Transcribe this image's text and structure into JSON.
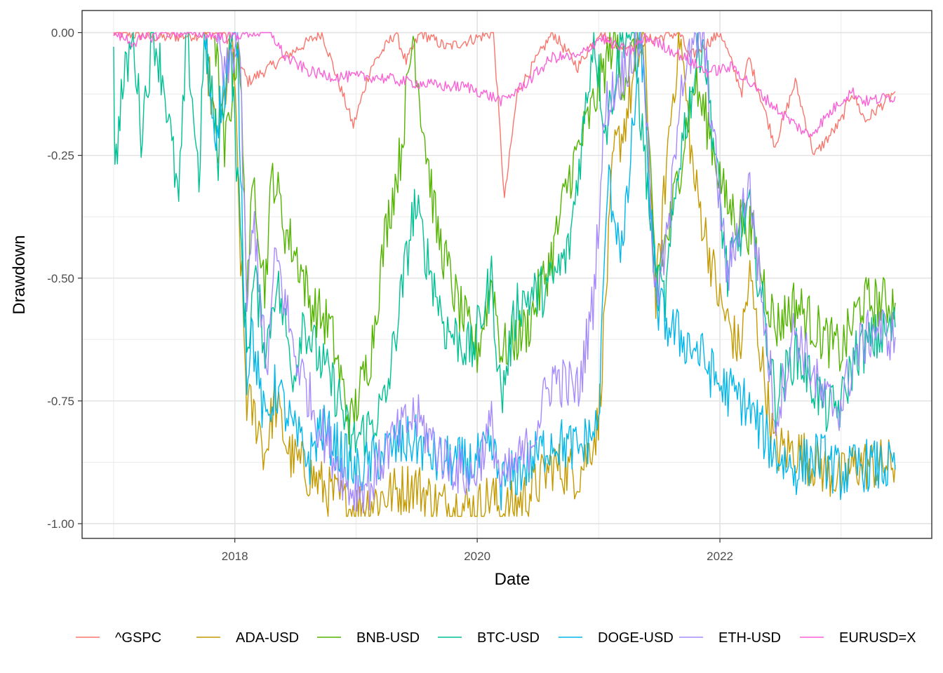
{
  "chart_data": {
    "type": "line",
    "xlabel": "Date",
    "ylabel": "Drawdown",
    "xlim": [
      "2016-09-28",
      "2023-10-01"
    ],
    "ylim": [
      -1.03,
      0.045
    ],
    "x_ticks": [
      "2018-01-01",
      "2020-01-01",
      "2022-01-01"
    ],
    "x_tick_labels": [
      "2018",
      "2020",
      "2022"
    ],
    "y_ticks": [
      0.0,
      -0.25,
      -0.5,
      -0.75,
      -1.0
    ],
    "y_tick_labels": [
      "0.00",
      "-0.25",
      "-0.50",
      "-0.75",
      "-1.00"
    ],
    "grid": true,
    "legend_position": "bottom",
    "series": [
      {
        "name": "^GSPC",
        "color": "#F8766D",
        "points": [
          [
            "2017-01-01",
            0
          ],
          [
            "2017-06-01",
            -0.01
          ],
          [
            "2017-12-01",
            0
          ],
          [
            "2018-02-10",
            -0.1
          ],
          [
            "2018-06-01",
            -0.05
          ],
          [
            "2018-09-20",
            0
          ],
          [
            "2018-12-24",
            -0.19
          ],
          [
            "2019-02-15",
            -0.07
          ],
          [
            "2019-04-30",
            0
          ],
          [
            "2019-06-01",
            -0.06
          ],
          [
            "2019-07-15",
            0
          ],
          [
            "2019-10-01",
            -0.03
          ],
          [
            "2020-02-19",
            0
          ],
          [
            "2020-03-23",
            -0.34
          ],
          [
            "2020-05-01",
            -0.12
          ],
          [
            "2020-08-15",
            0
          ],
          [
            "2020-10-30",
            -0.07
          ],
          [
            "2020-12-31",
            0
          ],
          [
            "2021-03-01",
            -0.03
          ],
          [
            "2021-09-01",
            0
          ],
          [
            "2021-10-01",
            -0.05
          ],
          [
            "2022-01-03",
            0
          ],
          [
            "2022-03-08",
            -0.12
          ],
          [
            "2022-03-29",
            -0.05
          ],
          [
            "2022-06-16",
            -0.23
          ],
          [
            "2022-08-16",
            -0.1
          ],
          [
            "2022-10-12",
            -0.25
          ],
          [
            "2023-01-01",
            -0.18
          ],
          [
            "2023-02-02",
            -0.12
          ],
          [
            "2023-03-15",
            -0.18
          ],
          [
            "2023-06-13",
            -0.12
          ]
        ]
      },
      {
        "name": "ADA-USD",
        "color": "#C49A00",
        "points": [
          [
            "2017-10-01",
            0
          ],
          [
            "2017-11-10",
            -0.25
          ],
          [
            "2017-12-25",
            0
          ],
          [
            "2018-01-15",
            -0.4
          ],
          [
            "2018-02-06",
            -0.75
          ],
          [
            "2018-03-15",
            -0.8
          ],
          [
            "2018-04-01",
            -0.86
          ],
          [
            "2018-05-01",
            -0.75
          ],
          [
            "2018-06-15",
            -0.86
          ],
          [
            "2018-08-15",
            -0.9
          ],
          [
            "2018-10-01",
            -0.93
          ],
          [
            "2018-12-15",
            -0.97
          ],
          [
            "2019-03-01",
            -0.95
          ],
          [
            "2019-06-26",
            -0.92
          ],
          [
            "2019-09-01",
            -0.96
          ],
          [
            "2020-01-01",
            -0.97
          ],
          [
            "2020-02-15",
            -0.94
          ],
          [
            "2020-03-13",
            -0.98
          ],
          [
            "2020-05-15",
            -0.95
          ],
          [
            "2020-07-01",
            -0.92
          ],
          [
            "2020-08-15",
            -0.88
          ],
          [
            "2020-11-01",
            -0.9
          ],
          [
            "2020-12-31",
            -0.8
          ],
          [
            "2021-02-15",
            -0.25
          ],
          [
            "2021-03-15",
            -0.2
          ],
          [
            "2021-05-16",
            0
          ],
          [
            "2021-06-22",
            -0.55
          ],
          [
            "2021-08-01",
            -0.2
          ],
          [
            "2021-09-02",
            0
          ],
          [
            "2021-10-15",
            -0.3
          ],
          [
            "2022-01-01",
            -0.55
          ],
          [
            "2022-03-01",
            -0.65
          ],
          [
            "2022-04-01",
            -0.5
          ],
          [
            "2022-06-15",
            -0.85
          ],
          [
            "2022-08-15",
            -0.85
          ],
          [
            "2022-11-10",
            -0.89
          ],
          [
            "2022-12-30",
            -0.91
          ],
          [
            "2023-02-15",
            -0.88
          ],
          [
            "2023-06-13",
            -0.88
          ]
        ]
      },
      {
        "name": "BNB-USD",
        "color": "#53B400",
        "points": [
          [
            "2017-11-01",
            0
          ],
          [
            "2017-12-01",
            -0.25
          ],
          [
            "2018-01-13",
            0
          ],
          [
            "2018-02-06",
            -0.5
          ],
          [
            "2018-03-01",
            -0.3
          ],
          [
            "2018-04-01",
            -0.52
          ],
          [
            "2018-04-25",
            -0.28
          ],
          [
            "2018-06-01",
            -0.4
          ],
          [
            "2018-07-15",
            -0.47
          ],
          [
            "2018-08-15",
            -0.55
          ],
          [
            "2018-10-15",
            -0.6
          ],
          [
            "2018-12-15",
            -0.8
          ],
          [
            "2019-02-15",
            -0.65
          ],
          [
            "2019-04-01",
            -0.4
          ],
          [
            "2019-05-15",
            -0.25
          ],
          [
            "2019-06-22",
            0
          ],
          [
            "2019-07-15",
            -0.15
          ],
          [
            "2019-09-01",
            -0.4
          ],
          [
            "2019-11-01",
            -0.55
          ],
          [
            "2020-01-01",
            -0.65
          ],
          [
            "2020-02-15",
            -0.5
          ],
          [
            "2020-03-13",
            -0.65
          ],
          [
            "2020-06-01",
            -0.6
          ],
          [
            "2020-08-15",
            -0.45
          ],
          [
            "2020-10-01",
            -0.3
          ],
          [
            "2020-12-15",
            -0.15
          ],
          [
            "2021-02-19",
            0
          ],
          [
            "2021-03-15",
            -0.1
          ],
          [
            "2021-05-10",
            0
          ],
          [
            "2021-06-22",
            -0.5
          ],
          [
            "2021-08-01",
            -0.4
          ],
          [
            "2021-10-15",
            -0.1
          ],
          [
            "2021-12-01",
            -0.2
          ],
          [
            "2022-01-20",
            -0.35
          ],
          [
            "2022-04-01",
            -0.4
          ],
          [
            "2022-06-18",
            -0.6
          ],
          [
            "2022-08-15",
            -0.55
          ],
          [
            "2022-11-09",
            -0.62
          ],
          [
            "2023-01-01",
            -0.65
          ],
          [
            "2023-03-01",
            -0.55
          ],
          [
            "2023-06-13",
            -0.55
          ]
        ]
      },
      {
        "name": "BTC-USD",
        "color": "#00C094",
        "points": [
          [
            "2017-01-01",
            0
          ],
          [
            "2017-01-05",
            -0.3
          ],
          [
            "2017-01-20",
            -0.15
          ],
          [
            "2017-03-01",
            0
          ],
          [
            "2017-03-25",
            -0.2
          ],
          [
            "2017-05-01",
            0
          ],
          [
            "2017-06-01",
            -0.1
          ],
          [
            "2017-07-16",
            -0.35
          ],
          [
            "2017-08-10",
            0
          ],
          [
            "2017-09-15",
            -0.3
          ],
          [
            "2017-10-01",
            0
          ],
          [
            "2017-11-12",
            -0.25
          ],
          [
            "2017-12-17",
            0
          ],
          [
            "2018-02-06",
            -0.65
          ],
          [
            "2018-03-01",
            -0.5
          ],
          [
            "2018-04-06",
            -0.65
          ],
          [
            "2018-05-05",
            -0.5
          ],
          [
            "2018-06-29",
            -0.7
          ],
          [
            "2018-07-24",
            -0.58
          ],
          [
            "2018-09-01",
            -0.65
          ],
          [
            "2018-11-15",
            -0.75
          ],
          [
            "2018-12-15",
            -0.84
          ],
          [
            "2019-02-15",
            -0.8
          ],
          [
            "2019-04-01",
            -0.75
          ],
          [
            "2019-06-26",
            -0.35
          ],
          [
            "2019-08-01",
            -0.45
          ],
          [
            "2019-09-26",
            -0.6
          ],
          [
            "2019-12-17",
            -0.65
          ],
          [
            "2020-02-13",
            -0.5
          ],
          [
            "2020-03-13",
            -0.75
          ],
          [
            "2020-05-01",
            -0.55
          ],
          [
            "2020-08-01",
            -0.52
          ],
          [
            "2020-10-01",
            -0.45
          ],
          [
            "2020-11-15",
            -0.2
          ],
          [
            "2020-12-17",
            0
          ],
          [
            "2021-01-22",
            -0.2
          ],
          [
            "2021-03-14",
            0
          ],
          [
            "2021-04-14",
            0
          ],
          [
            "2021-06-22",
            -0.5
          ],
          [
            "2021-07-20",
            -0.55
          ],
          [
            "2021-09-01",
            -0.25
          ],
          [
            "2021-11-10",
            0
          ],
          [
            "2022-01-24",
            -0.5
          ],
          [
            "2022-03-28",
            -0.35
          ],
          [
            "2022-06-18",
            -0.75
          ],
          [
            "2022-08-15",
            -0.65
          ],
          [
            "2022-11-21",
            -0.77
          ],
          [
            "2023-01-01",
            -0.76
          ],
          [
            "2023-02-15",
            -0.65
          ],
          [
            "2023-06-13",
            -0.6
          ]
        ]
      },
      {
        "name": "DOGE-USD",
        "color": "#00B6EB",
        "points": [
          [
            "2017-10-01",
            0
          ],
          [
            "2017-11-01",
            -0.2
          ],
          [
            "2018-01-07",
            0
          ],
          [
            "2018-02-06",
            -0.7
          ],
          [
            "2018-02-20",
            -0.6
          ],
          [
            "2018-04-01",
            -0.8
          ],
          [
            "2018-05-05",
            -0.72
          ],
          [
            "2018-07-01",
            -0.82
          ],
          [
            "2018-08-15",
            -0.87
          ],
          [
            "2018-09-15",
            -0.8
          ],
          [
            "2018-11-01",
            -0.84
          ],
          [
            "2019-01-01",
            -0.9
          ],
          [
            "2019-04-03",
            -0.85
          ],
          [
            "2019-06-26",
            -0.83
          ],
          [
            "2019-09-01",
            -0.87
          ],
          [
            "2019-12-15",
            -0.88
          ],
          [
            "2020-02-15",
            -0.85
          ],
          [
            "2020-03-13",
            -0.92
          ],
          [
            "2020-06-01",
            -0.88
          ],
          [
            "2020-08-15",
            -0.83
          ],
          [
            "2020-11-01",
            -0.85
          ],
          [
            "2020-12-31",
            -0.8
          ],
          [
            "2021-01-28",
            -0.3
          ],
          [
            "2021-03-15",
            -0.45
          ],
          [
            "2021-05-08",
            0
          ],
          [
            "2021-06-22",
            -0.55
          ],
          [
            "2021-08-01",
            -0.6
          ],
          [
            "2021-10-28",
            -0.65
          ],
          [
            "2022-01-01",
            -0.72
          ],
          [
            "2022-03-15",
            -0.75
          ],
          [
            "2022-06-18",
            -0.86
          ],
          [
            "2022-08-15",
            -0.89
          ],
          [
            "2022-10-25",
            -0.86
          ],
          [
            "2022-12-30",
            -0.9
          ],
          [
            "2023-03-15",
            -0.88
          ],
          [
            "2023-06-13",
            -0.89
          ]
        ]
      },
      {
        "name": "ETH-USD",
        "color": "#A58AFF",
        "points": [
          [
            "2017-11-10",
            0
          ],
          [
            "2017-12-01",
            -0.1
          ],
          [
            "2018-01-13",
            0
          ],
          [
            "2018-02-06",
            -0.55
          ],
          [
            "2018-03-01",
            -0.38
          ],
          [
            "2018-04-06",
            -0.7
          ],
          [
            "2018-05-05",
            -0.45
          ],
          [
            "2018-06-29",
            -0.65
          ],
          [
            "2018-09-12",
            -0.8
          ],
          [
            "2018-12-15",
            -0.93
          ],
          [
            "2019-02-15",
            -0.92
          ],
          [
            "2019-04-01",
            -0.85
          ],
          [
            "2019-06-26",
            -0.78
          ],
          [
            "2019-09-26",
            -0.87
          ],
          [
            "2019-12-17",
            -0.91
          ],
          [
            "2020-02-13",
            -0.8
          ],
          [
            "2020-03-13",
            -0.92
          ],
          [
            "2020-06-01",
            -0.85
          ],
          [
            "2020-08-15",
            -0.7
          ],
          [
            "2020-11-01",
            -0.73
          ],
          [
            "2020-12-15",
            -0.55
          ],
          [
            "2021-01-22",
            -0.15
          ],
          [
            "2021-02-28",
            -0.1
          ],
          [
            "2021-05-12",
            0
          ],
          [
            "2021-06-22",
            -0.55
          ],
          [
            "2021-08-01",
            -0.4
          ],
          [
            "2021-09-03",
            -0.1
          ],
          [
            "2021-11-10",
            0
          ],
          [
            "2022-01-24",
            -0.5
          ],
          [
            "2022-03-28",
            -0.3
          ],
          [
            "2022-06-18",
            -0.79
          ],
          [
            "2022-08-14",
            -0.6
          ],
          [
            "2022-11-09",
            -0.75
          ],
          [
            "2022-12-30",
            -0.76
          ],
          [
            "2023-02-15",
            -0.65
          ],
          [
            "2023-04-15",
            -0.6
          ],
          [
            "2023-06-13",
            -0.62
          ]
        ]
      },
      {
        "name": "EURUSD=X",
        "color": "#FB61D7",
        "points": [
          [
            "2017-01-01",
            0
          ],
          [
            "2017-03-01",
            -0.02
          ],
          [
            "2017-06-01",
            0
          ],
          [
            "2017-09-08",
            0
          ],
          [
            "2017-12-01",
            -0.01
          ],
          [
            "2018-02-15",
            0
          ],
          [
            "2018-04-20",
            0
          ],
          [
            "2018-06-01",
            -0.05
          ],
          [
            "2018-08-15",
            -0.08
          ],
          [
            "2018-11-01",
            -0.09
          ],
          [
            "2019-03-01",
            -0.09
          ],
          [
            "2019-06-01",
            -0.1
          ],
          [
            "2019-10-01",
            -0.11
          ],
          [
            "2019-12-01",
            -0.11
          ],
          [
            "2020-03-20",
            -0.14
          ],
          [
            "2020-06-01",
            -0.1
          ],
          [
            "2020-08-15",
            -0.05
          ],
          [
            "2020-11-01",
            -0.05
          ],
          [
            "2021-01-06",
            -0.01
          ],
          [
            "2021-03-31",
            -0.04
          ],
          [
            "2021-05-25",
            -0.01
          ],
          [
            "2021-08-20",
            -0.04
          ],
          [
            "2021-11-24",
            -0.08
          ],
          [
            "2022-02-10",
            -0.07
          ],
          [
            "2022-05-12",
            -0.13
          ],
          [
            "2022-07-15",
            -0.17
          ],
          [
            "2022-09-27",
            -0.21
          ],
          [
            "2022-12-30",
            -0.14
          ],
          [
            "2023-02-02",
            -0.12
          ],
          [
            "2023-03-15",
            -0.14
          ],
          [
            "2023-06-13",
            -0.13
          ]
        ]
      }
    ]
  }
}
